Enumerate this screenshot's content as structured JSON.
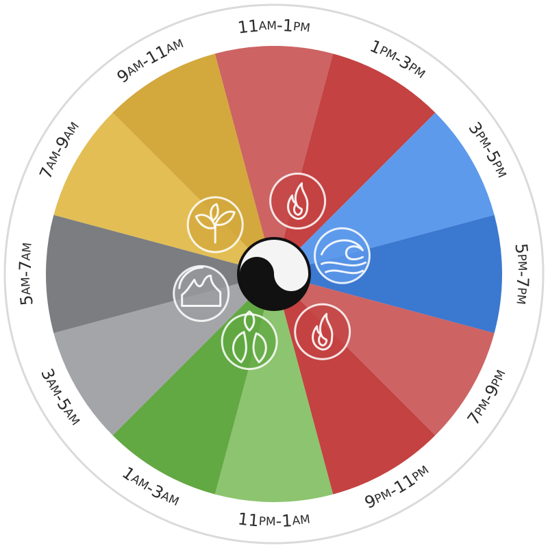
{
  "segments": [
    {
      "label": "11am-1pm",
      "start": "11",
      "start_suffix": "am",
      "end": "1",
      "end_suffix": "pm",
      "color": "#CD6363"
    },
    {
      "label": "1pm-3pm",
      "start": "1",
      "start_suffix": "pm",
      "end": "3",
      "end_suffix": "pm",
      "color": "#C44242"
    },
    {
      "label": "3pm-5pm",
      "start": "3",
      "start_suffix": "pm",
      "end": "5",
      "end_suffix": "pm",
      "color": "#5E9AEB"
    },
    {
      "label": "5pm-7pm",
      "start": "5",
      "start_suffix": "pm",
      "end": "7",
      "end_suffix": "pm",
      "color": "#3B78D0"
    },
    {
      "label": "7pm-9pm",
      "start": "7",
      "start_suffix": "pm",
      "end": "9",
      "end_suffix": "pm",
      "color": "#CD6363"
    },
    {
      "label": "9pm-11pm",
      "start": "9",
      "start_suffix": "pm",
      "end": "11",
      "end_suffix": "pm",
      "color": "#C44242"
    },
    {
      "label": "11pm-1am",
      "start": "11",
      "start_suffix": "pm",
      "end": "1",
      "end_suffix": "am",
      "color": "#8DC46F"
    },
    {
      "label": "1am-3am",
      "start": "1",
      "start_suffix": "am",
      "end": "3",
      "end_suffix": "am",
      "color": "#62A843"
    },
    {
      "label": "3am-5am",
      "start": "3",
      "start_suffix": "am",
      "end": "5",
      "end_suffix": "am",
      "color": "#A3A5A8"
    },
    {
      "label": "5am-7am",
      "start": "5",
      "start_suffix": "am",
      "end": "7",
      "end_suffix": "am",
      "color": "#7B7D81"
    },
    {
      "label": "7am-9am",
      "start": "7",
      "start_suffix": "am",
      "end": "9",
      "end_suffix": "am",
      "color": "#E2BE55"
    },
    {
      "label": "9am-11am",
      "start": "9",
      "start_suffix": "am",
      "end": "11",
      "end_suffix": "am",
      "color": "#D3A83C"
    }
  ],
  "colors": {
    "border": "#DADADA",
    "background": "#FFFFFF",
    "text": "#2B2B2B"
  },
  "emblems": [
    {
      "icon": "fire-icon",
      "color": "#C44242"
    },
    {
      "icon": "water-icon",
      "color": "#5E9AEB"
    },
    {
      "icon": "fire-icon",
      "color": "#C44242"
    },
    {
      "icon": "leaves-icon",
      "color": "#62A843"
    },
    {
      "icon": "metal-icon",
      "color": "#9A9CA0"
    },
    {
      "icon": "sprout-icon",
      "color": "#D3A83C"
    }
  ],
  "center_icon": "yin-yang-icon"
}
